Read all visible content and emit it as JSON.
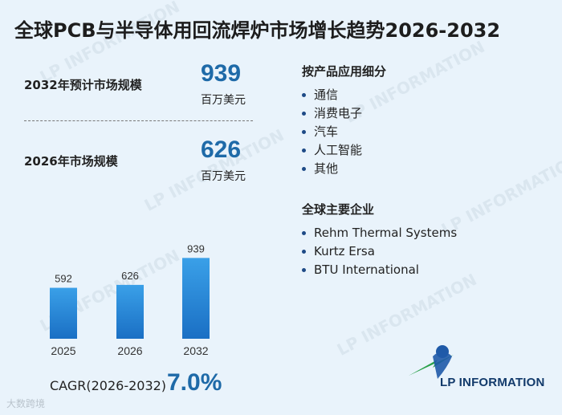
{
  "title": "全球PCB与半导体用回流焊炉市场增长趋势2026-2032",
  "stats": [
    {
      "label": "2032年预计市场规模",
      "value": "939",
      "unit": "百万美元"
    },
    {
      "label": "2026年市场规模",
      "value": "626",
      "unit": "百万美元"
    }
  ],
  "segments": {
    "title": "按产品应用细分",
    "items": [
      "通信",
      "消费电子",
      "汽车",
      "人工智能",
      "其他"
    ]
  },
  "companies": {
    "title": "全球主要企业",
    "items": [
      "Rehm Thermal Systems",
      "Kurtz Ersa",
      "BTU International"
    ]
  },
  "cagr": {
    "label": "CAGR(2026-2032)",
    "value": "7.0%"
  },
  "logo": {
    "text": "LP INFORMATION"
  },
  "watermark": "LP INFORMATION",
  "corner_mark": "大数跨境",
  "colors": {
    "accent": "#1e6aa8",
    "bar_top": "#3aa0e8",
    "bar_bottom": "#1a6fc4"
  },
  "chart_data": {
    "type": "bar",
    "categories": [
      "2025",
      "2026",
      "2032"
    ],
    "values": [
      592,
      626,
      939
    ],
    "ylim": [
      0,
      1000
    ],
    "grid": false,
    "legend": "none"
  }
}
